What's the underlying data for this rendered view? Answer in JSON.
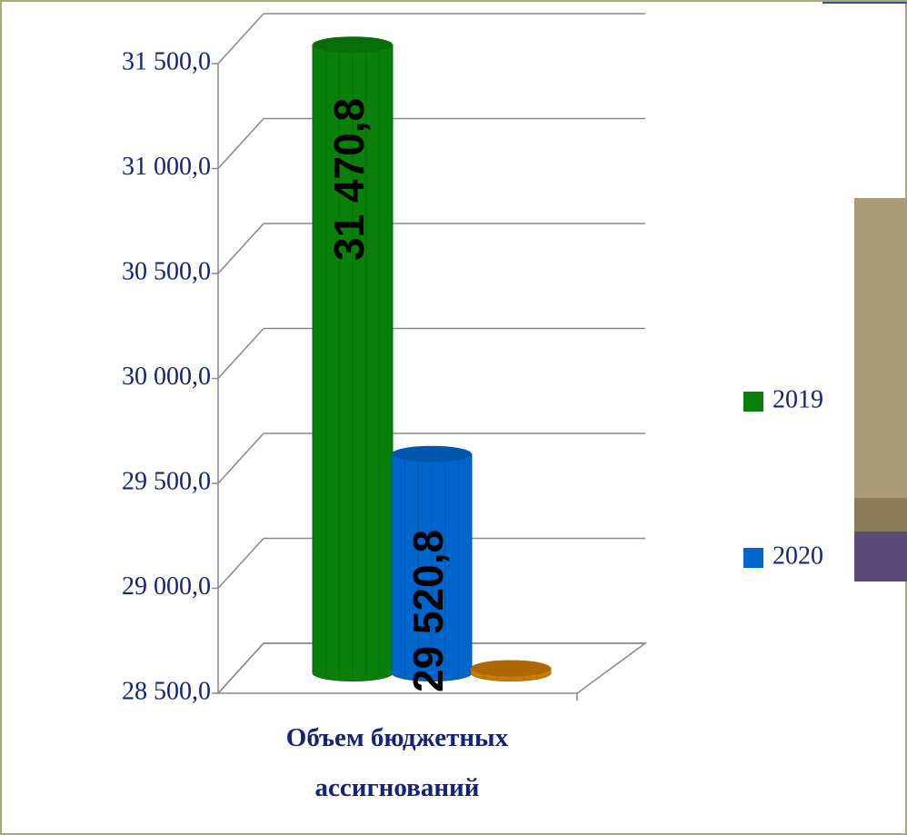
{
  "chart_data": {
    "type": "bar3d",
    "categories": [
      "Объем бюджетных ассигнований"
    ],
    "series": [
      {
        "name": "2019",
        "color": "#0a800a",
        "values": [
          31470.8
        ],
        "value_labels": [
          "31 470,8"
        ]
      },
      {
        "name": "2020",
        "color": "#0066cc",
        "values": [
          29520.8
        ],
        "value_labels": [
          "29 520,8"
        ]
      },
      {
        "color": "#cc7a00",
        "values": [
          28500
        ]
      }
    ],
    "ylim": [
      28500,
      31500
    ],
    "yticks": [
      {
        "value": 28500,
        "label": "28 500,0"
      },
      {
        "value": 29000,
        "label": "29 000,0"
      },
      {
        "value": 29500,
        "label": "29 500,0"
      },
      {
        "value": 30000,
        "label": "30 000,0"
      },
      {
        "value": 30500,
        "label": "30 500,0"
      },
      {
        "value": 31000,
        "label": "31 000,0"
      },
      {
        "value": 31500,
        "label": "31 500,0"
      }
    ],
    "grid": true
  }
}
